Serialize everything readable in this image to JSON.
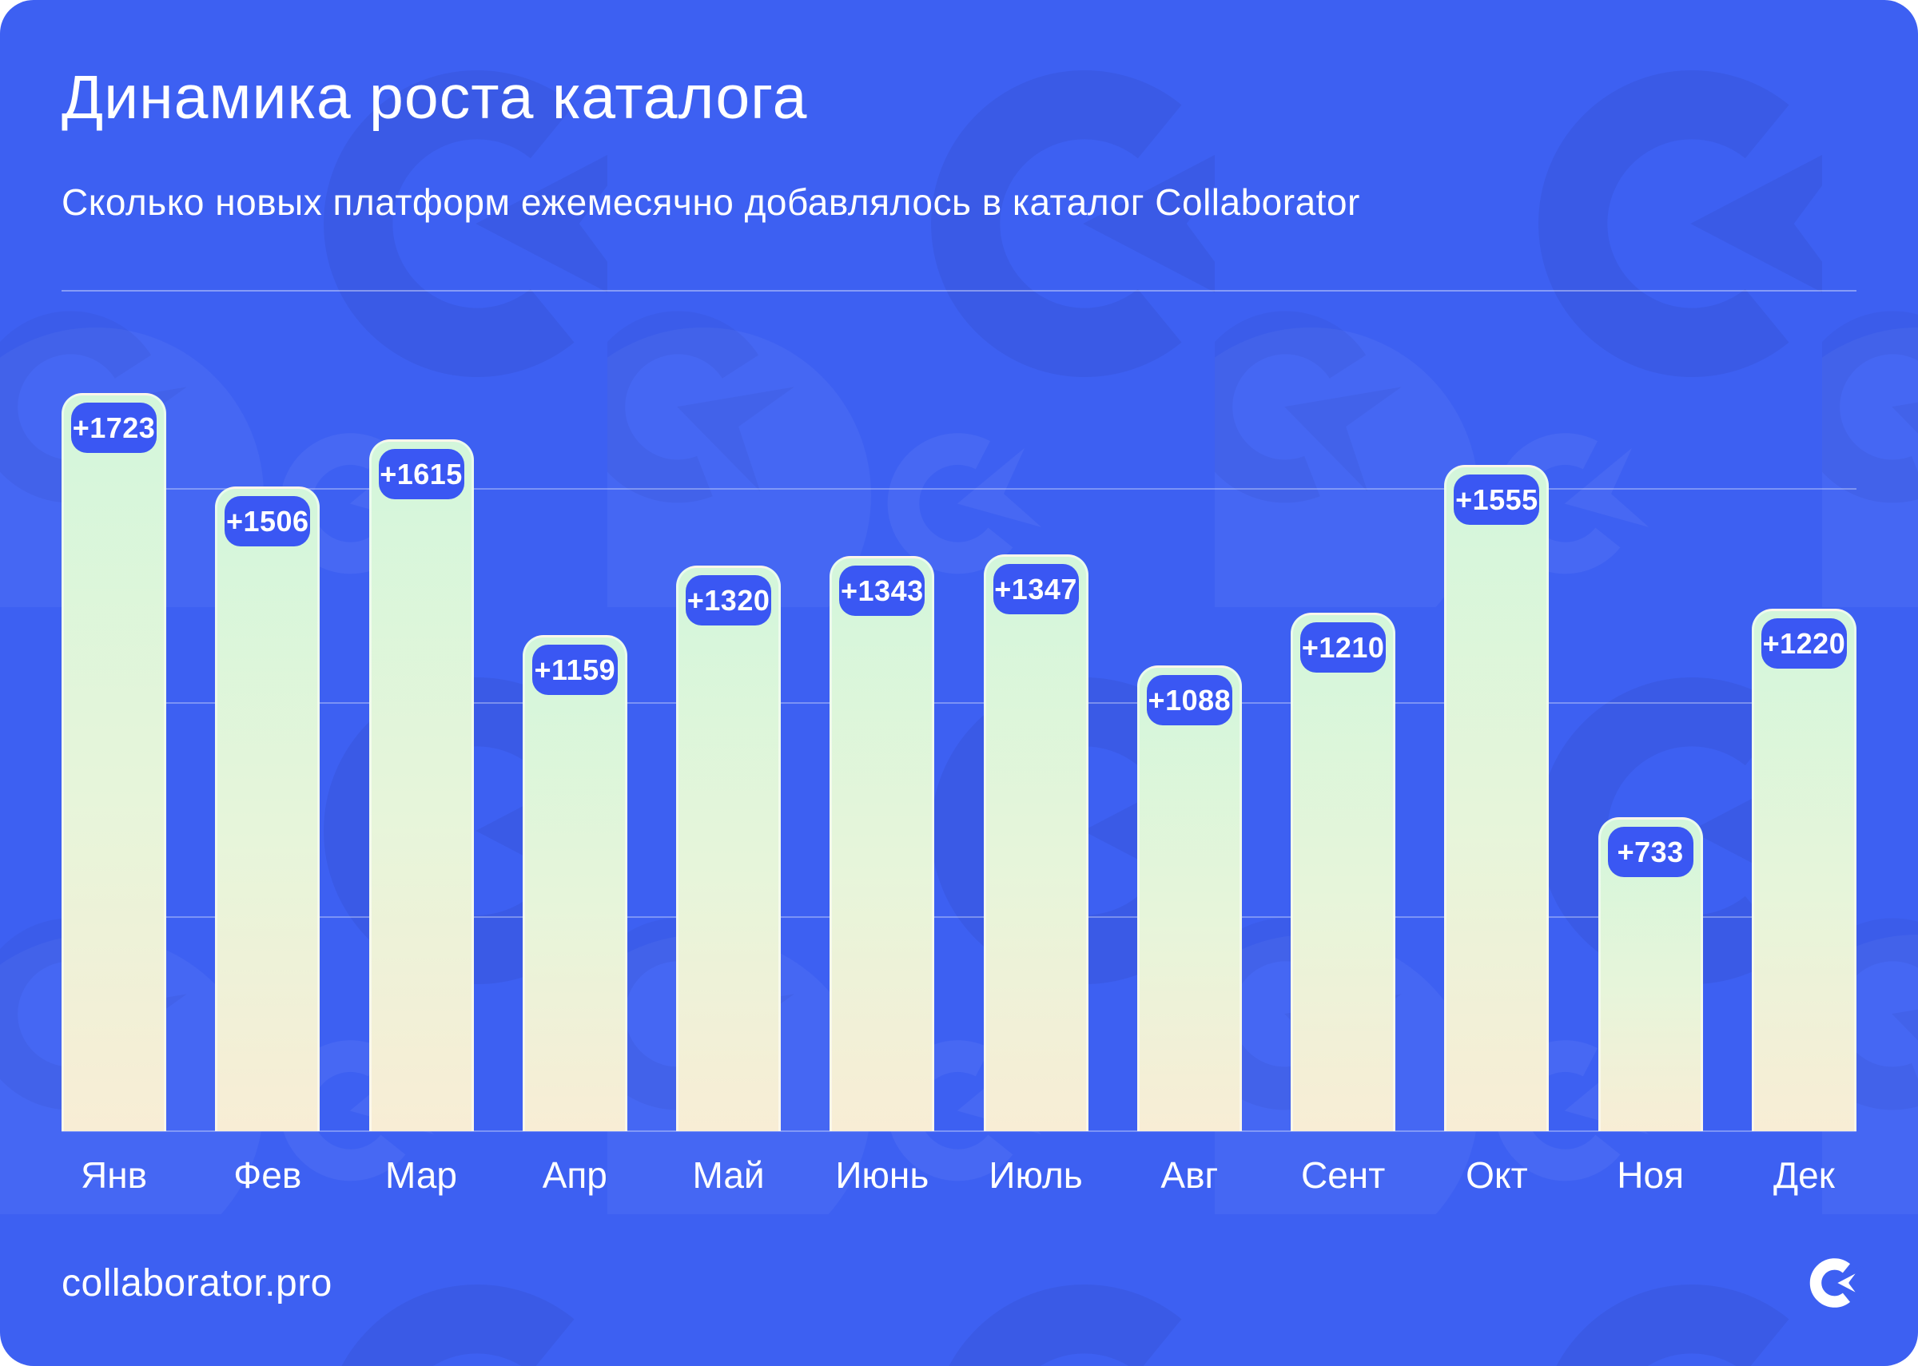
{
  "page": {
    "title": "Динамика роста каталога",
    "subtitle": "Сколько новых платформ ежемесячно добавлялось в каталог Collaborator",
    "footer": {
      "site": "collaborator.pro",
      "logo_icon": "collaborator-logo"
    }
  },
  "colors": {
    "card_background": "#3D60F2",
    "badge_background": "#3A57F3",
    "bar_gradient_top": "#D3F6DB",
    "bar_gradient_bottom": "#F8EDD5",
    "gridline": "rgba(255,255,255,0.38)",
    "text": "#FFFFFF"
  },
  "chart_data": {
    "type": "bar",
    "title": "Динамика роста каталога",
    "subtitle": "Сколько новых платформ ежемесячно добавлялось в каталог Collaborator",
    "categories": [
      "Янв",
      "Фев",
      "Мар",
      "Апр",
      "Май",
      "Июнь",
      "Июль",
      "Авг",
      "Сент",
      "Окт",
      "Ноя",
      "Дек"
    ],
    "values": [
      1723,
      1506,
      1615,
      1159,
      1320,
      1343,
      1347,
      1088,
      1210,
      1555,
      733,
      1220
    ],
    "value_labels": [
      "+1723",
      "+1506",
      "+1615",
      "+1159",
      "+1320",
      "+1343",
      "+1347",
      "+1088",
      "+1210",
      "+1555",
      "+733",
      "+1220"
    ],
    "xlabel": "",
    "ylabel": "",
    "ylim": [
      0,
      1800
    ],
    "gridline_values": [
      0,
      500,
      1000,
      1500
    ],
    "grid": "horizontal",
    "legend_position": "none"
  }
}
